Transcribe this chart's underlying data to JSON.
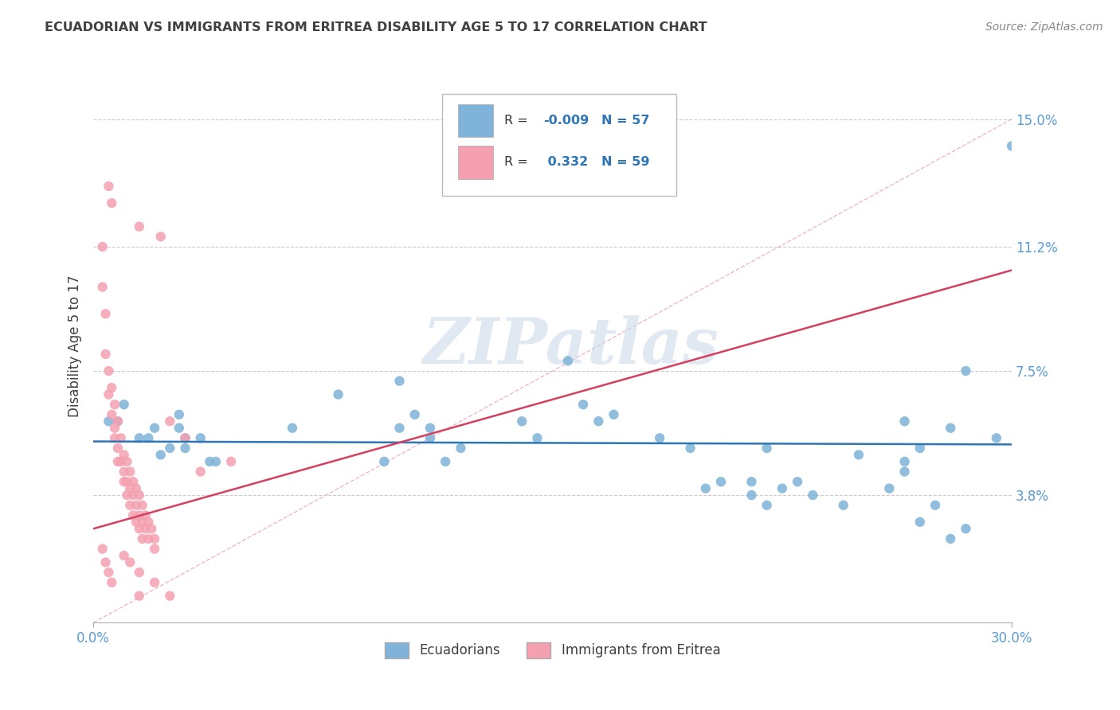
{
  "title": "ECUADORIAN VS IMMIGRANTS FROM ERITREA DISABILITY AGE 5 TO 17 CORRELATION CHART",
  "source": "Source: ZipAtlas.com",
  "ylabel": "Disability Age 5 to 17",
  "xlim": [
    0.0,
    0.3
  ],
  "ylim": [
    0.0,
    0.165
  ],
  "watermark": "ZIPatlas",
  "color_blue": "#7FB3D9",
  "color_pink": "#F4A0B0",
  "color_line_blue": "#2E75B6",
  "color_line_pink": "#D44060",
  "color_diag": "#E8A0B0",
  "title_color": "#404040",
  "axis_label_color": "#5B9BD5",
  "background_color": "#FFFFFF",
  "ytick_vals": [
    0.038,
    0.075,
    0.112,
    0.15
  ],
  "ytick_labels": [
    "3.8%",
    "7.5%",
    "11.2%",
    "15.0%"
  ],
  "blue_line_y_intercept": 0.054,
  "blue_line_slope": -0.003,
  "pink_line_x0": 0.0,
  "pink_line_y0": 0.028,
  "pink_line_x1": 0.3,
  "pink_line_y1": 0.105,
  "scatter_blue": [
    [
      0.005,
      0.06
    ],
    [
      0.008,
      0.06
    ],
    [
      0.01,
      0.065
    ],
    [
      0.015,
      0.055
    ],
    [
      0.018,
      0.055
    ],
    [
      0.02,
      0.058
    ],
    [
      0.022,
      0.05
    ],
    [
      0.025,
      0.052
    ],
    [
      0.028,
      0.058
    ],
    [
      0.028,
      0.062
    ],
    [
      0.03,
      0.055
    ],
    [
      0.03,
      0.052
    ],
    [
      0.035,
      0.055
    ],
    [
      0.038,
      0.048
    ],
    [
      0.04,
      0.048
    ],
    [
      0.065,
      0.058
    ],
    [
      0.08,
      0.068
    ],
    [
      0.095,
      0.048
    ],
    [
      0.1,
      0.072
    ],
    [
      0.1,
      0.058
    ],
    [
      0.105,
      0.062
    ],
    [
      0.11,
      0.055
    ],
    [
      0.11,
      0.058
    ],
    [
      0.115,
      0.048
    ],
    [
      0.12,
      0.052
    ],
    [
      0.14,
      0.06
    ],
    [
      0.145,
      0.055
    ],
    [
      0.155,
      0.078
    ],
    [
      0.16,
      0.065
    ],
    [
      0.165,
      0.06
    ],
    [
      0.17,
      0.062
    ],
    [
      0.185,
      0.055
    ],
    [
      0.195,
      0.052
    ],
    [
      0.2,
      0.04
    ],
    [
      0.205,
      0.042
    ],
    [
      0.215,
      0.038
    ],
    [
      0.215,
      0.042
    ],
    [
      0.22,
      0.035
    ],
    [
      0.225,
      0.04
    ],
    [
      0.23,
      0.042
    ],
    [
      0.235,
      0.038
    ],
    [
      0.245,
      0.035
    ],
    [
      0.26,
      0.04
    ],
    [
      0.265,
      0.048
    ],
    [
      0.265,
      0.045
    ],
    [
      0.27,
      0.03
    ],
    [
      0.275,
      0.035
    ],
    [
      0.28,
      0.025
    ],
    [
      0.285,
      0.028
    ],
    [
      0.22,
      0.052
    ],
    [
      0.25,
      0.05
    ],
    [
      0.265,
      0.06
    ],
    [
      0.27,
      0.052
    ],
    [
      0.28,
      0.058
    ],
    [
      0.285,
      0.075
    ],
    [
      0.295,
      0.055
    ],
    [
      0.3,
      0.142
    ]
  ],
  "scatter_pink": [
    [
      0.003,
      0.112
    ],
    [
      0.003,
      0.1
    ],
    [
      0.004,
      0.092
    ],
    [
      0.004,
      0.08
    ],
    [
      0.005,
      0.075
    ],
    [
      0.005,
      0.068
    ],
    [
      0.006,
      0.07
    ],
    [
      0.006,
      0.062
    ],
    [
      0.007,
      0.065
    ],
    [
      0.007,
      0.058
    ],
    [
      0.007,
      0.055
    ],
    [
      0.008,
      0.06
    ],
    [
      0.008,
      0.052
    ],
    [
      0.008,
      0.048
    ],
    [
      0.009,
      0.055
    ],
    [
      0.009,
      0.048
    ],
    [
      0.01,
      0.05
    ],
    [
      0.01,
      0.045
    ],
    [
      0.01,
      0.042
    ],
    [
      0.011,
      0.048
    ],
    [
      0.011,
      0.042
    ],
    [
      0.011,
      0.038
    ],
    [
      0.012,
      0.045
    ],
    [
      0.012,
      0.04
    ],
    [
      0.012,
      0.035
    ],
    [
      0.013,
      0.042
    ],
    [
      0.013,
      0.038
    ],
    [
      0.013,
      0.032
    ],
    [
      0.014,
      0.04
    ],
    [
      0.014,
      0.035
    ],
    [
      0.014,
      0.03
    ],
    [
      0.015,
      0.038
    ],
    [
      0.015,
      0.032
    ],
    [
      0.015,
      0.028
    ],
    [
      0.016,
      0.035
    ],
    [
      0.016,
      0.03
    ],
    [
      0.016,
      0.025
    ],
    [
      0.017,
      0.032
    ],
    [
      0.017,
      0.028
    ],
    [
      0.018,
      0.03
    ],
    [
      0.018,
      0.025
    ],
    [
      0.019,
      0.028
    ],
    [
      0.02,
      0.025
    ],
    [
      0.02,
      0.022
    ],
    [
      0.005,
      0.13
    ],
    [
      0.006,
      0.125
    ],
    [
      0.015,
      0.118
    ],
    [
      0.022,
      0.115
    ],
    [
      0.01,
      0.02
    ],
    [
      0.012,
      0.018
    ],
    [
      0.015,
      0.015
    ],
    [
      0.02,
      0.012
    ],
    [
      0.025,
      0.06
    ],
    [
      0.03,
      0.055
    ],
    [
      0.035,
      0.045
    ],
    [
      0.045,
      0.048
    ],
    [
      0.015,
      0.008
    ],
    [
      0.025,
      0.008
    ],
    [
      0.003,
      0.022
    ],
    [
      0.004,
      0.018
    ],
    [
      0.005,
      0.015
    ],
    [
      0.006,
      0.012
    ]
  ]
}
